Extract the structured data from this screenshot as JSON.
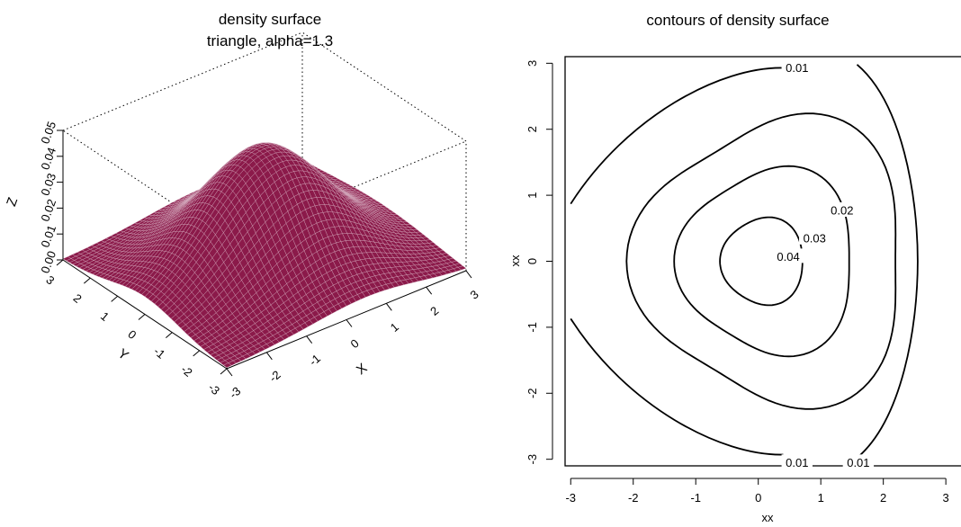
{
  "chart_data": [
    {
      "type": "surface",
      "title": "density surface",
      "subtitle": "triangle, alpha=1.3",
      "xlabel": "X",
      "ylabel": "Y",
      "zlabel": "Z",
      "x_ticks": [
        "-3",
        "-2",
        "-1",
        "0",
        "1",
        "2",
        "3"
      ],
      "y_ticks": [
        "-3",
        "-2",
        "-1",
        "0",
        "1",
        "2",
        "3"
      ],
      "z_ticks": [
        "0.00",
        "0.01",
        "0.02",
        "0.03",
        "0.04",
        "0.05"
      ],
      "xlim": [
        -3,
        3
      ],
      "ylim": [
        -3,
        3
      ],
      "zlim": [
        0,
        0.05
      ],
      "surface_color": "#8b1a4a",
      "peak": {
        "x": 0,
        "y": 0,
        "z": 0.045
      }
    },
    {
      "type": "contour",
      "title": "contours of density surface",
      "xlabel": "xx",
      "ylabel": "xx",
      "x_ticks": [
        "-3",
        "-2",
        "-1",
        "0",
        "1",
        "2",
        "3"
      ],
      "y_ticks": [
        "-3",
        "-2",
        "-1",
        "0",
        "1",
        "2",
        "3"
      ],
      "xlim": [
        -3,
        3
      ],
      "ylim": [
        -3,
        3
      ],
      "grid": false,
      "levels": [
        0.01,
        0.02,
        0.03,
        0.04
      ],
      "contour_labels": [
        "0.01",
        "0.01",
        "0.01",
        "0.02",
        "0.03",
        "0.04"
      ]
    }
  ]
}
